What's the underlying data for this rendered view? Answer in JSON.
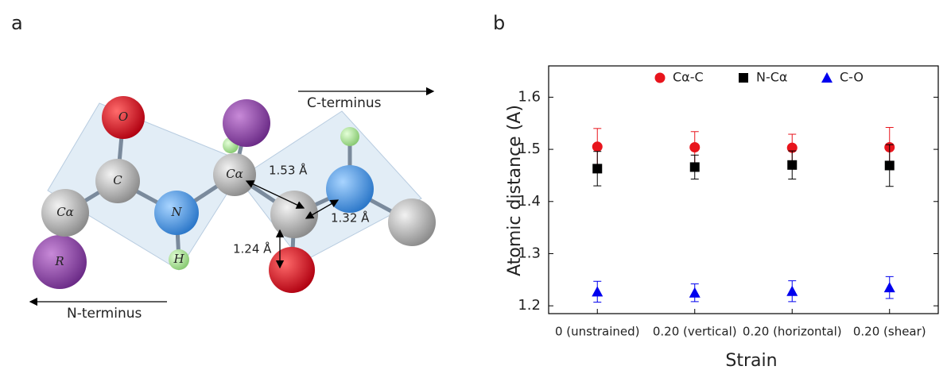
{
  "diagram": {
    "panel_label": "a",
    "atom_labels": [
      "O",
      "C",
      "Cα",
      "N",
      "Cα",
      "R",
      "H"
    ],
    "distances": [
      "1.53 Å",
      "1.32 Å",
      "1.24 Å"
    ],
    "c_terminus": "C-terminus",
    "n_terminus": "N-terminus"
  },
  "chart_panel_label": "b",
  "chart_data": {
    "type": "scatter",
    "x_label": "Strain",
    "y_label": "Atomic distance (A)",
    "categories": [
      "0 (unstrained)",
      "0.20 (vertical)",
      "0.20 (horizontal)",
      "0.20 (shear)"
    ],
    "series": [
      {
        "name": "Cα-C",
        "color": "#e8141c",
        "marker": "circle",
        "values": [
          1.505,
          1.504,
          1.503,
          1.504
        ],
        "errors": [
          0.035,
          0.03,
          0.026,
          0.038
        ]
      },
      {
        "name": "N-Cα",
        "color": "#000000",
        "marker": "square",
        "values": [
          1.463,
          1.466,
          1.47,
          1.469
        ],
        "errors": [
          0.033,
          0.023,
          0.027,
          0.04
        ]
      },
      {
        "name": "C-O",
        "color": "#0000ee",
        "marker": "triangle",
        "values": [
          1.227,
          1.225,
          1.228,
          1.235
        ],
        "errors": [
          0.02,
          0.017,
          0.02,
          0.021
        ]
      }
    ],
    "ylim": [
      1.185,
      1.66
    ],
    "yticks": [
      1.2,
      1.3,
      1.4,
      1.5,
      1.6
    ],
    "legend": "top"
  }
}
